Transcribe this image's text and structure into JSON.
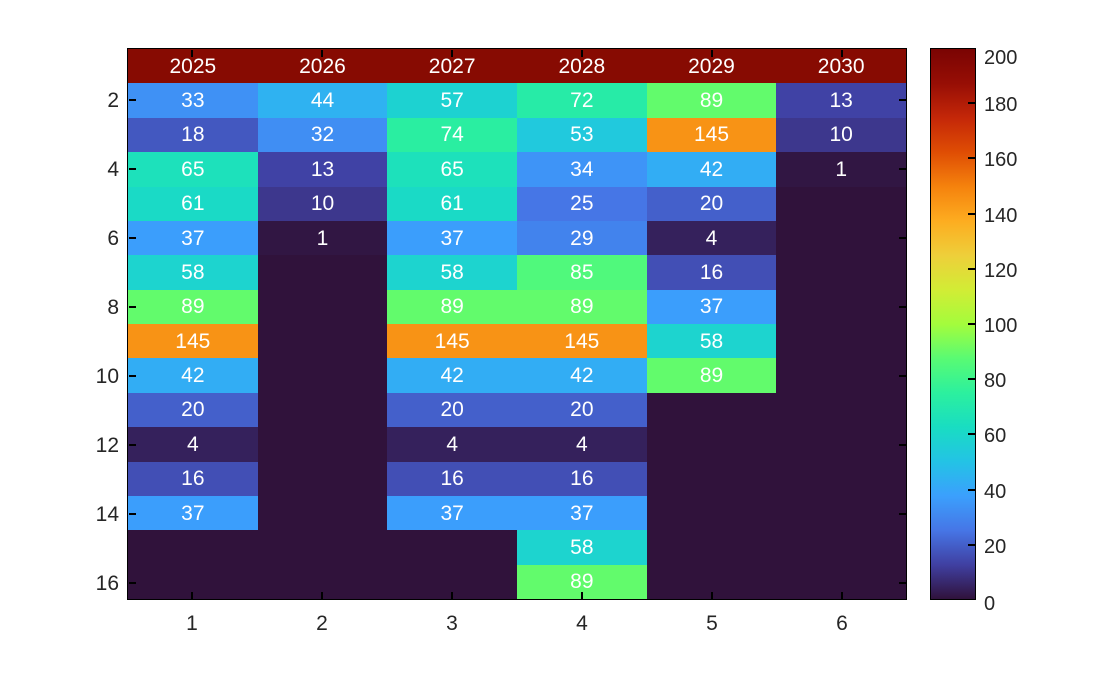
{
  "chart_data": {
    "type": "heatmap",
    "title": "",
    "xlabel": "",
    "ylabel": "",
    "x_ticks": [
      "1",
      "2",
      "3",
      "4",
      "5",
      "6"
    ],
    "y_ticks": [
      "2",
      "4",
      "6",
      "8",
      "10",
      "12",
      "14",
      "16"
    ],
    "header_row_labels": [
      "2025",
      "2026",
      "2027",
      "2028",
      "2029",
      "2030"
    ],
    "matrix": [
      [
        2025,
        2026,
        2027,
        2028,
        2029,
        2030
      ],
      [
        33,
        44,
        57,
        72,
        89,
        13
      ],
      [
        18,
        32,
        74,
        53,
        145,
        10
      ],
      [
        65,
        13,
        65,
        34,
        42,
        1
      ],
      [
        61,
        10,
        61,
        25,
        20,
        null
      ],
      [
        37,
        1,
        37,
        29,
        4,
        null
      ],
      [
        58,
        null,
        58,
        85,
        16,
        null
      ],
      [
        89,
        null,
        89,
        89,
        37,
        null
      ],
      [
        145,
        null,
        145,
        145,
        58,
        null
      ],
      [
        42,
        null,
        42,
        42,
        89,
        null
      ],
      [
        20,
        null,
        20,
        20,
        null,
        null
      ],
      [
        4,
        null,
        4,
        4,
        null,
        null
      ],
      [
        16,
        null,
        16,
        16,
        null,
        null
      ],
      [
        37,
        null,
        37,
        37,
        null,
        null
      ],
      [
        null,
        null,
        null,
        58,
        null,
        null
      ],
      [
        null,
        null,
        null,
        89,
        null,
        null
      ]
    ],
    "value_range": [
      0,
      200
    ],
    "colorbar_ticks": [
      "0",
      "20",
      "40",
      "60",
      "80",
      "100",
      "120",
      "140",
      "160",
      "180",
      "200"
    ],
    "colormap": {
      "name": "turbo",
      "stops": [
        "#30123b",
        "#4040a2",
        "#4676e6",
        "#3ba0fd",
        "#23c3e5",
        "#19ddc2",
        "#2cf09e",
        "#59fb73",
        "#a4fc3c",
        "#d2ec35",
        "#eecf3a",
        "#fdac20",
        "#f5820d",
        "#df4d04",
        "#c42708",
        "#970e05",
        "#7a0403"
      ]
    },
    "clip_color": "#870b02",
    "empty_value": 0,
    "cell_text_color": "#ffffff",
    "axis_text_color": "#262626",
    "tick_color": "#000000",
    "background_color": "#ffffff",
    "legend_position": "right-colorbar",
    "grid": "off"
  }
}
